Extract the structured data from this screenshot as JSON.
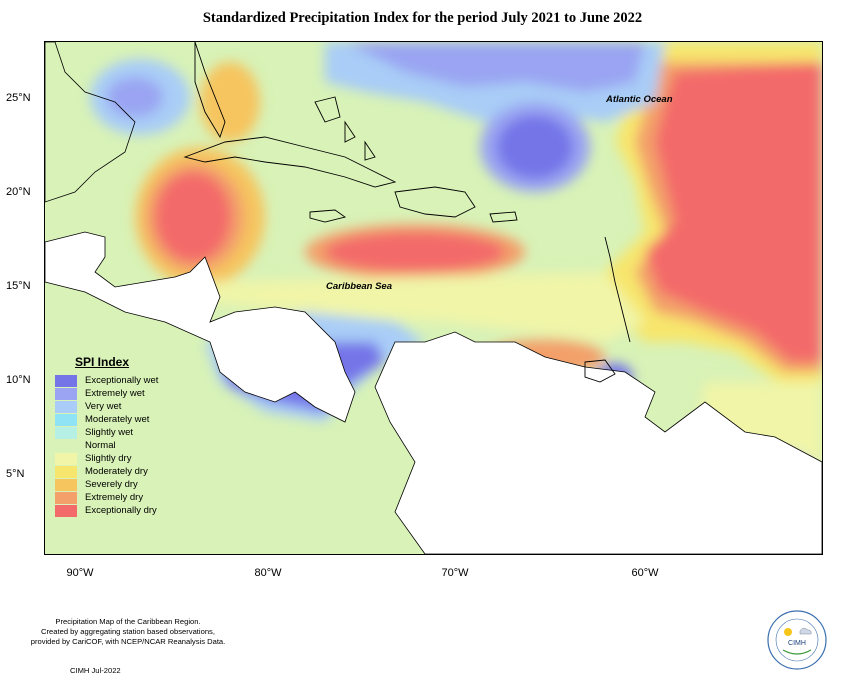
{
  "title": "Standardized Precipitation Index for the period July 2021 to June 2022",
  "map_labels": {
    "atlantic": "Atlantic Ocean",
    "caribbean": "Caribbean Sea"
  },
  "axes": {
    "longitude_ticks": [
      "90°W",
      "80°W",
      "70°W",
      "60°W"
    ],
    "latitude_ticks": [
      "25°N",
      "20°N",
      "15°N",
      "10°N",
      "5°N"
    ]
  },
  "legend": {
    "title": "SPI Index",
    "items": [
      {
        "label": "Exceptionally wet",
        "color": "#7575e8"
      },
      {
        "label": "Extremely wet",
        "color": "#9aa4f2"
      },
      {
        "label": "Very wet",
        "color": "#a9cdf7"
      },
      {
        "label": "Moderately wet",
        "color": "#8fe3f5"
      },
      {
        "label": "Slightly wet",
        "color": "#b6f0e4"
      },
      {
        "label": "Normal",
        "color": "#d8f2b7"
      },
      {
        "label": "Slightly dry",
        "color": "#f0f5a8"
      },
      {
        "label": "Moderately dry",
        "color": "#f7e66d"
      },
      {
        "label": "Severely dry",
        "color": "#f6c55e"
      },
      {
        "label": "Extremely dry",
        "color": "#f3a06b"
      },
      {
        "label": "Exceptionally dry",
        "color": "#f36a6a"
      }
    ]
  },
  "footer": {
    "line1": "Precipitation Map of the Caribbean Region.",
    "line2": "Created by aggregating station based observations,",
    "line3": "provided by CariCOF, with NCEP/NCAR Reanalysis Data.",
    "date": "CIMH Jul-2022"
  },
  "logo": {
    "text": "CIMH"
  }
}
